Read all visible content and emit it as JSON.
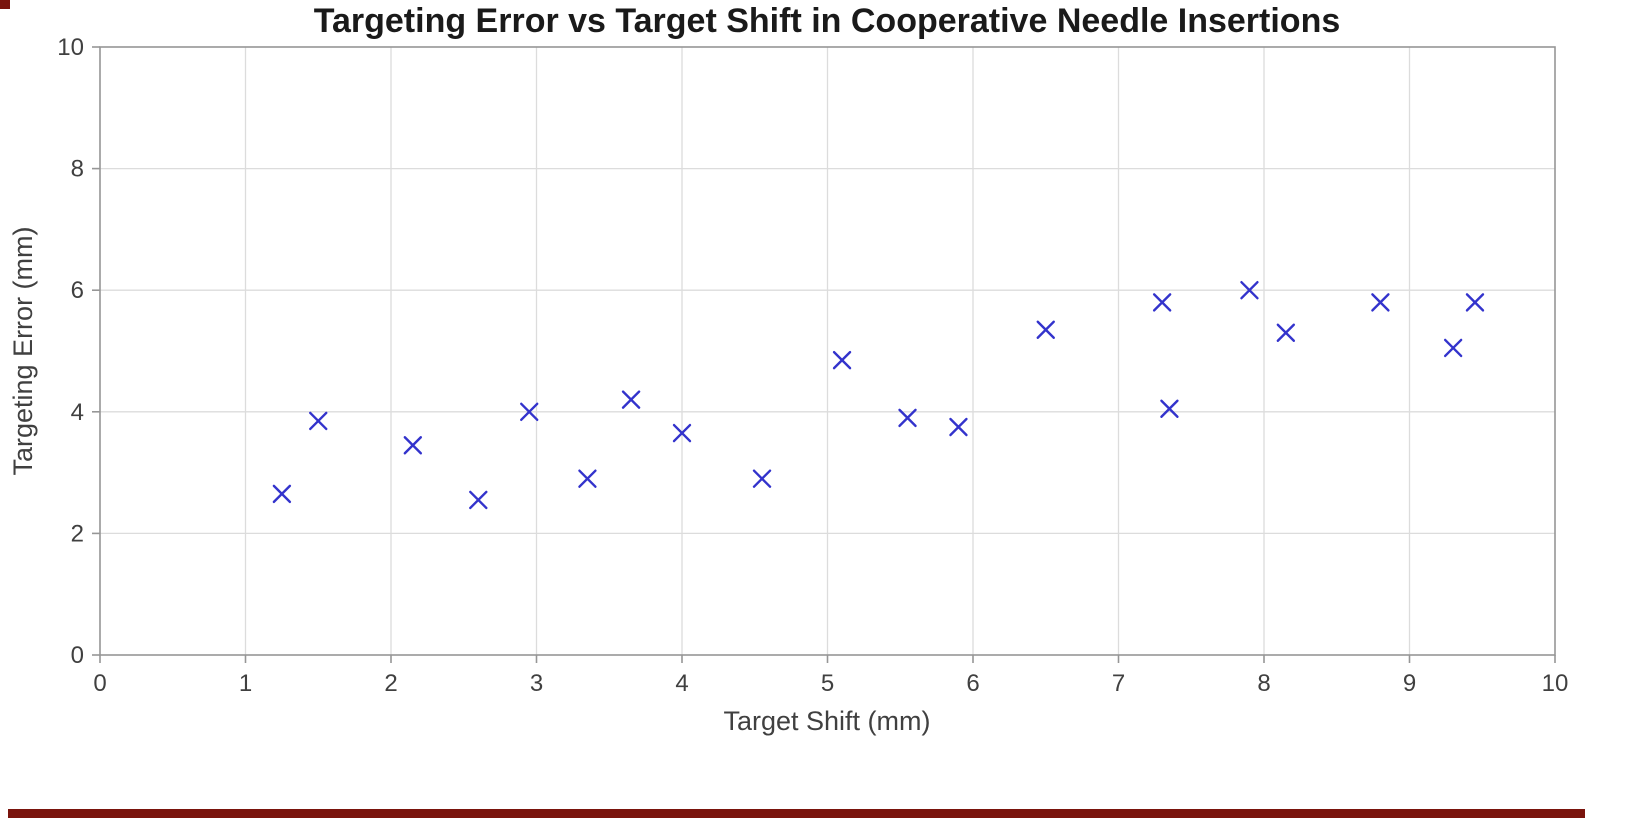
{
  "page": {
    "background": "#ffffff",
    "accent_bar_color": "#7a140d"
  },
  "chart_data": {
    "type": "scatter",
    "title": "Targeting Error vs Target Shift in Cooperative Needle Insertions",
    "xlabel": "Target Shift (mm)",
    "ylabel": "Targeting Error (mm)",
    "xlim": [
      0,
      10
    ],
    "ylim": [
      0,
      10
    ],
    "x_ticks": [
      0,
      1,
      2,
      3,
      4,
      5,
      6,
      7,
      8,
      9,
      10
    ],
    "y_ticks": [
      0,
      2,
      4,
      6,
      8,
      10
    ],
    "grid": true,
    "legend": "none",
    "marker": "x",
    "marker_color": "#3333cc",
    "grid_color": "#dcdcdc",
    "axis_color": "#969696",
    "tick_label_color": "#404040",
    "title_color": "#1a1a1a",
    "points": [
      [
        1.25,
        2.65
      ],
      [
        1.5,
        3.85
      ],
      [
        2.15,
        3.45
      ],
      [
        2.6,
        2.55
      ],
      [
        2.95,
        4.0
      ],
      [
        3.35,
        2.9
      ],
      [
        3.65,
        4.2
      ],
      [
        4.0,
        3.65
      ],
      [
        4.55,
        2.9
      ],
      [
        5.1,
        4.85
      ],
      [
        5.55,
        3.9
      ],
      [
        5.9,
        3.75
      ],
      [
        6.5,
        5.35
      ],
      [
        7.3,
        5.8
      ],
      [
        7.35,
        4.05
      ],
      [
        7.9,
        6.0
      ],
      [
        8.15,
        5.3
      ],
      [
        8.8,
        5.8
      ],
      [
        9.3,
        5.05
      ],
      [
        9.45,
        5.8
      ]
    ]
  }
}
